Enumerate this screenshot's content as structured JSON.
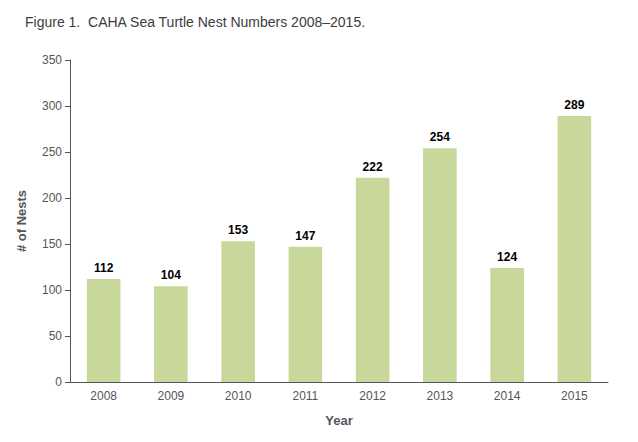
{
  "chart_data": {
    "type": "bar",
    "title": "Figure 1.  CAHA Sea Turtle Nest Numbers 2008–2015.",
    "xlabel": "Year",
    "ylabel": "# of Nests",
    "categories": [
      "2008",
      "2009",
      "2010",
      "2011",
      "2012",
      "2013",
      "2014",
      "2015"
    ],
    "values": [
      112,
      104,
      153,
      147,
      222,
      254,
      124,
      289
    ],
    "color": "#c8d89a",
    "ylim": [
      0,
      350
    ],
    "yticks": [
      0,
      50,
      100,
      150,
      200,
      250,
      300,
      350
    ],
    "grid": false,
    "data_labels": true
  }
}
